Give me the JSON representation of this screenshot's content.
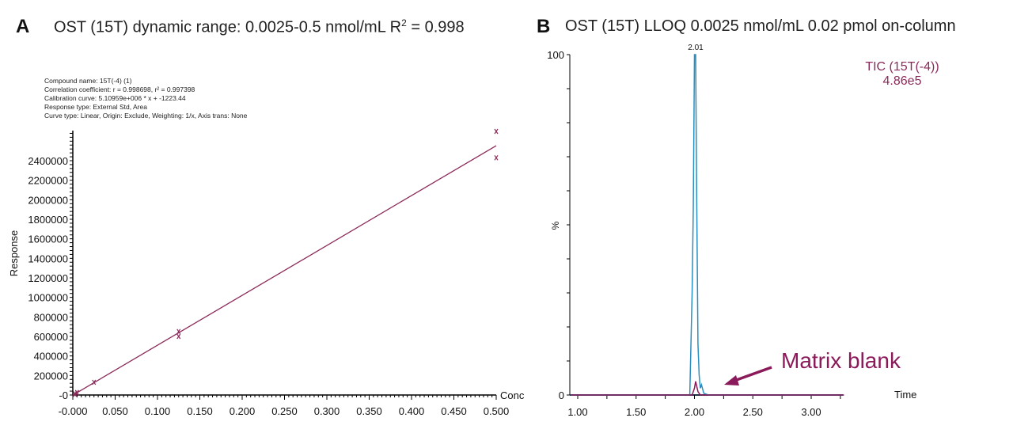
{
  "panel_a": {
    "letter": "A",
    "title": "OST (15T) dynamic range: 0.0025-0.5 nmol/mL R",
    "title_sup": "2",
    "title_end": " = 0.998",
    "info": [
      "Compound name: 15T(-4) (1)",
      "Correlation coefficient: r = 0.998698, r² = 0.997398",
      "Calibration curve: 5.10959e+006 * x + -1223.44",
      "Response type: External Std, Area",
      "Curve type: Linear, Origin: Exclude, Weighting: 1/x, Axis trans: None"
    ]
  },
  "panel_b": {
    "letter": "B",
    "title": "OST (15T) LLOQ 0.0025 nmol/mL 0.02 pmol on-column",
    "trace_label": "TIC (15T(-4))",
    "intensity": "4.86e5",
    "annotation": "Matrix blank",
    "peak_label": "2.01"
  },
  "chart_data": [
    {
      "type": "scatter",
      "xlabel": "Conc",
      "ylabel": "Response",
      "xlim": [
        0,
        0.5
      ],
      "ylim": [
        0,
        2750000
      ],
      "xticks": [
        "-0.000",
        "0.050",
        "0.100",
        "0.150",
        "0.200",
        "0.250",
        "0.300",
        "0.350",
        "0.400",
        "0.450",
        "0.500"
      ],
      "yticks": [
        "-0",
        "200000",
        "400000",
        "600000",
        "800000",
        "1000000",
        "1200000",
        "1400000",
        "1600000",
        "1800000",
        "2000000",
        "2200000",
        "2400000"
      ],
      "points": [
        [
          0.0025,
          12000
        ],
        [
          0.0025,
          8000
        ],
        [
          0.005,
          26000
        ],
        [
          0.005,
          22000
        ],
        [
          0.025,
          130000
        ],
        [
          0.125,
          650000
        ],
        [
          0.125,
          600000
        ],
        [
          0.5,
          2700000
        ],
        [
          0.5,
          2430000
        ]
      ],
      "fit": {
        "slope": 5109590,
        "intercept": -1223.44
      },
      "color": "#8b2a5a"
    },
    {
      "type": "line",
      "xlabel": "Time",
      "ylabel": "%",
      "xlim": [
        0.94,
        3.28
      ],
      "ylim": [
        0,
        100
      ],
      "xticks": [
        "1.00",
        "1.50",
        "2.00",
        "2.50",
        "3.00"
      ],
      "yticks": [
        "0",
        "100"
      ],
      "series": [
        {
          "name": "TIC (15T(-4))",
          "color": "#2a8fc0",
          "x": [
            0.94,
            1.96,
            1.98,
            1.99,
            2.0,
            2.01,
            2.02,
            2.03,
            2.04,
            2.05,
            2.06,
            2.08,
            2.12,
            3.28
          ],
          "y": [
            0,
            0,
            30,
            55,
            100,
            100,
            55,
            15,
            6,
            2,
            3,
            0.5,
            0,
            0
          ]
        },
        {
          "name": "Matrix blank",
          "color": "#8b1a5a",
          "x": [
            0.94,
            1.98,
            2.0,
            2.01,
            2.03,
            2.05,
            3.28
          ],
          "y": [
            0,
            0,
            2,
            4,
            1,
            0,
            0
          ]
        }
      ]
    }
  ]
}
